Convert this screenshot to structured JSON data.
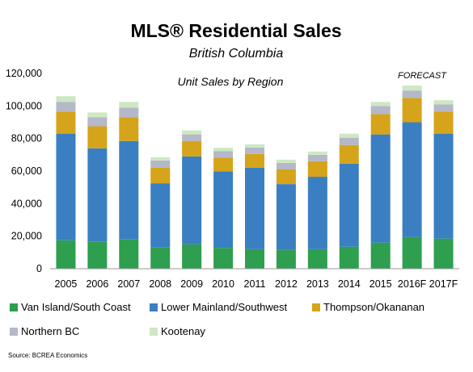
{
  "chart_data": {
    "type": "bar",
    "stacked": true,
    "title": "MLS® Residential Sales",
    "subtitle": "British Columbia",
    "annotation_inner": "Unit Sales by Region",
    "forecast_label": "FORECAST",
    "source": "Source: BCREA Economics",
    "ylim": [
      0,
      120000
    ],
    "yticks": [
      "0",
      "20,000",
      "40,000",
      "60,000",
      "80,000",
      "100,000",
      "120,000"
    ],
    "ytick_values": [
      0,
      20000,
      40000,
      60000,
      80000,
      100000,
      120000
    ],
    "grid": false,
    "legend_position": "bottom",
    "categories": [
      "2005",
      "2006",
      "2007",
      "2008",
      "2009",
      "2010",
      "2011",
      "2012",
      "2013",
      "2014",
      "2015",
      "2016F",
      "2017F"
    ],
    "series": [
      {
        "name": "Van Island/South Coast",
        "color": "#2e9e4f",
        "values": [
          17500,
          16500,
          18000,
          13000,
          15000,
          12800,
          12000,
          11500,
          12000,
          13500,
          16000,
          19500,
          18500
        ]
      },
      {
        "name": "Lower Mainland/Southwest",
        "color": "#3a7fc1",
        "values": [
          65500,
          57500,
          60500,
          39500,
          54000,
          47000,
          50000,
          40500,
          44500,
          51000,
          66500,
          70500,
          64500
        ]
      },
      {
        "name": "Thompson/Okananan",
        "color": "#d6a41a",
        "values": [
          13500,
          13500,
          14500,
          9500,
          9500,
          8500,
          8500,
          9000,
          9500,
          11500,
          12500,
          15000,
          13500
        ]
      },
      {
        "name": "Northern BC",
        "color": "#b4b8c8",
        "values": [
          6000,
          5500,
          6000,
          4500,
          4000,
          4000,
          4000,
          4000,
          4000,
          4500,
          5000,
          4500,
          4500
        ]
      },
      {
        "name": "Kootenay",
        "color": "#cde8c2",
        "values": [
          3500,
          3000,
          3500,
          2000,
          2500,
          2000,
          2000,
          2000,
          2000,
          2500,
          2500,
          3000,
          2500
        ]
      }
    ]
  }
}
